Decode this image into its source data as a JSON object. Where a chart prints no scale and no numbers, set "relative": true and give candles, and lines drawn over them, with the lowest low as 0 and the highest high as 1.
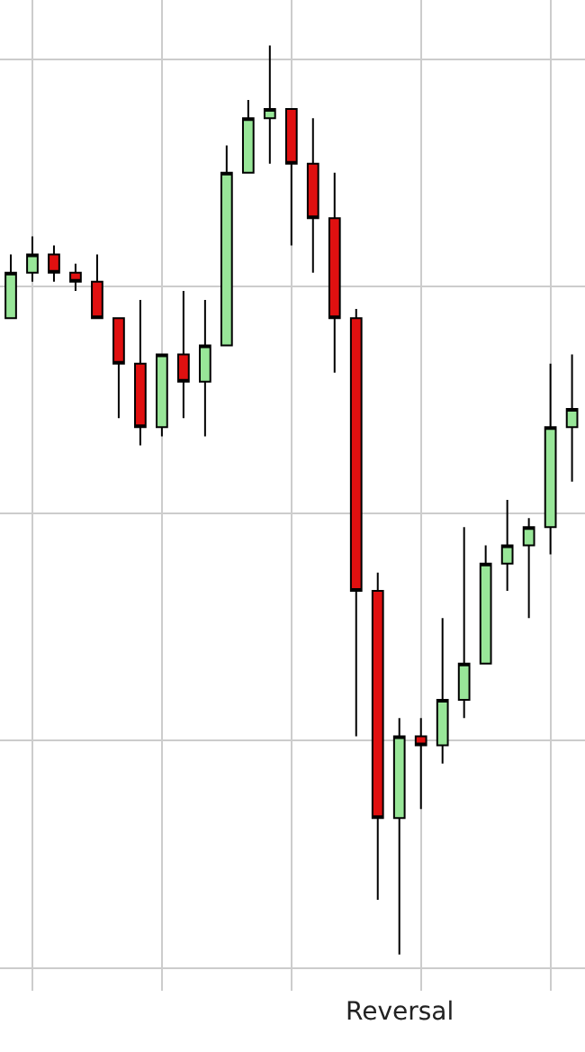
{
  "chart_data": {
    "type": "candlestick",
    "relative": true,
    "grid": true,
    "tick_labels": false,
    "categories": [
      null,
      null,
      null,
      null,
      null,
      null,
      null,
      null,
      null,
      null,
      null,
      null,
      null,
      null,
      null,
      null,
      null,
      null,
      null,
      null,
      null,
      null,
      null,
      null,
      null,
      null,
      null
    ],
    "ohlc": [
      [
        0.7,
        0.77,
        0.7,
        0.75
      ],
      [
        0.75,
        0.79,
        0.74,
        0.77
      ],
      [
        0.77,
        0.78,
        0.74,
        0.75
      ],
      [
        0.75,
        0.76,
        0.73,
        0.74
      ],
      [
        0.74,
        0.77,
        0.7,
        0.7
      ],
      [
        0.7,
        0.7,
        0.59,
        0.65
      ],
      [
        0.65,
        0.72,
        0.56,
        0.58
      ],
      [
        0.58,
        0.66,
        0.57,
        0.66
      ],
      [
        0.66,
        0.73,
        0.59,
        0.63
      ],
      [
        0.63,
        0.72,
        0.57,
        0.67
      ],
      [
        0.67,
        0.89,
        0.67,
        0.86
      ],
      [
        0.86,
        0.94,
        0.86,
        0.92
      ],
      [
        0.92,
        1.0,
        0.87,
        0.93
      ],
      [
        0.93,
        0.93,
        0.78,
        0.87
      ],
      [
        0.87,
        0.92,
        0.75,
        0.81
      ],
      [
        0.81,
        0.86,
        0.64,
        0.7
      ],
      [
        0.7,
        0.71,
        0.24,
        0.4
      ],
      [
        0.4,
        0.42,
        0.06,
        0.15
      ],
      [
        0.15,
        0.26,
        0,
        0.24
      ],
      [
        0.24,
        0.26,
        0.16,
        0.23
      ],
      [
        0.23,
        0.37,
        0.21,
        0.28
      ],
      [
        0.28,
        0.47,
        0.26,
        0.32
      ],
      [
        0.32,
        0.45,
        0.32,
        0.43
      ],
      [
        0.43,
        0.5,
        0.4,
        0.45
      ],
      [
        0.45,
        0.48,
        0.37,
        0.47
      ],
      [
        0.47,
        0.65,
        0.44,
        0.58
      ],
      [
        0.58,
        0.66,
        0.52,
        0.6
      ]
    ],
    "colors": [
      "#98e698",
      "#98e698",
      "#e01010",
      "#e01010",
      "#e01010",
      "#e01010",
      "#e01010",
      "#98e698",
      "#e01010",
      "#98e698",
      "#98e698",
      "#98e698",
      "#98e698",
      "#e01010",
      "#e01010",
      "#e01010",
      "#e01010",
      "#e01010",
      "#98e698",
      "#e01010",
      "#98e698",
      "#98e698",
      "#98e698",
      "#98e698",
      "#98e698",
      "#98e698",
      "#98e698"
    ],
    "annotations": [
      {
        "text": "Reversal",
        "y": 0
      }
    ]
  }
}
